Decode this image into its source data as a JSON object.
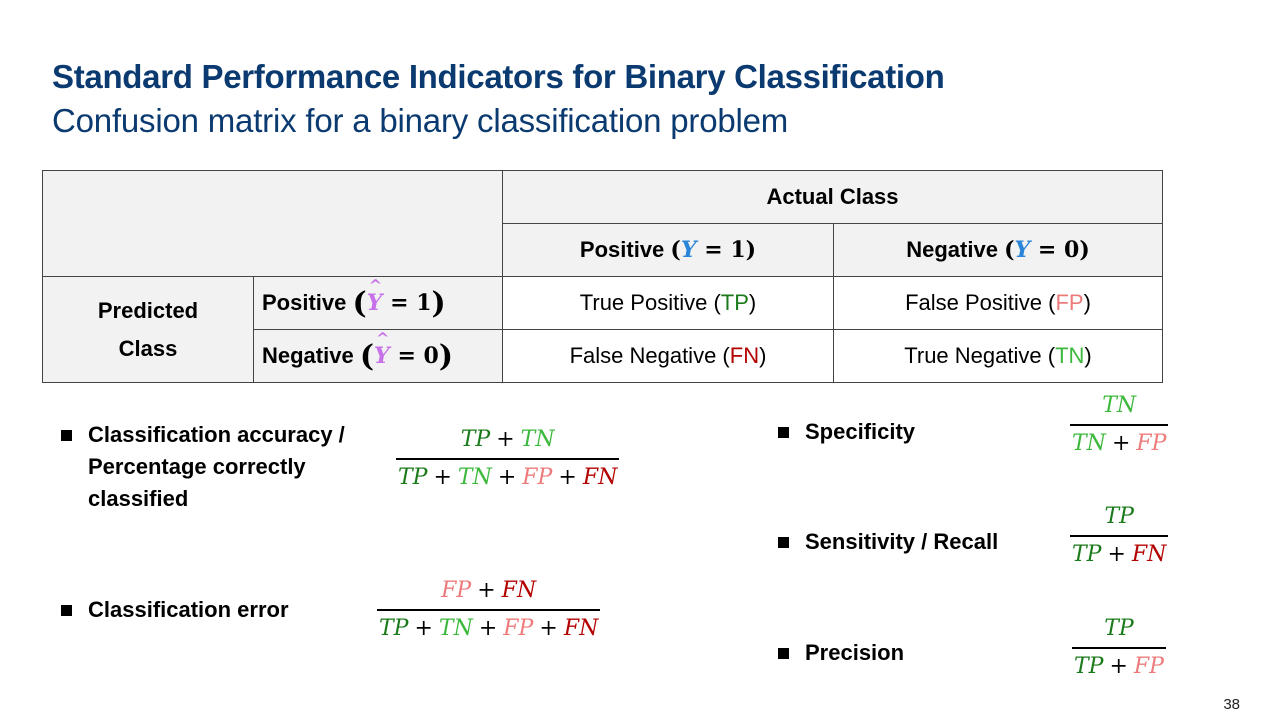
{
  "header": {
    "title": "Standard Performance Indicators for Binary Classification",
    "subtitle": "Confusion matrix for a binary classification problem"
  },
  "colors": {
    "title": "#0b3a70",
    "Y": "#2a84d8",
    "Yhat": "#c771e8",
    "TP": "#1a7a1a",
    "TN": "#3cb83c",
    "FP": "#ee7b7b",
    "FN": "#b30000"
  },
  "matrix": {
    "actual_header": "Actual Class",
    "col_pos_label": "Positive",
    "col_neg_label": "Negative",
    "col_pos_var": "Y",
    "col_neg_var": "Y",
    "eq": "=",
    "one": "1",
    "zero": "0",
    "predicted_line1": "Predicted",
    "predicted_line2": "Class",
    "row_pos_label": "Positive",
    "row_neg_label": "Negative",
    "hat_var": "Y",
    "hat": "^",
    "cells": {
      "tp_text": "True Positive",
      "tp_abbr": "TP",
      "fp_text": "False Positive",
      "fp_abbr": "FP",
      "fn_text": "False Negative",
      "fn_abbr": "FN",
      "tn_text": "True Negative",
      "tn_abbr": "TN"
    }
  },
  "metrics": {
    "accuracy": {
      "line1": "Classification accuracy /",
      "line2": "Percentage correctly",
      "line3": "classified"
    },
    "error": {
      "label": "Classification error"
    },
    "specificity": {
      "label": "Specificity"
    },
    "sensitivity": {
      "label": "Sensitivity / Recall"
    },
    "precision": {
      "label": "Precision"
    }
  },
  "sym": {
    "TP": "TP",
    "TN": "TN",
    "FP": "FP",
    "FN": "FN",
    "plus": "+"
  },
  "page_number": "38"
}
